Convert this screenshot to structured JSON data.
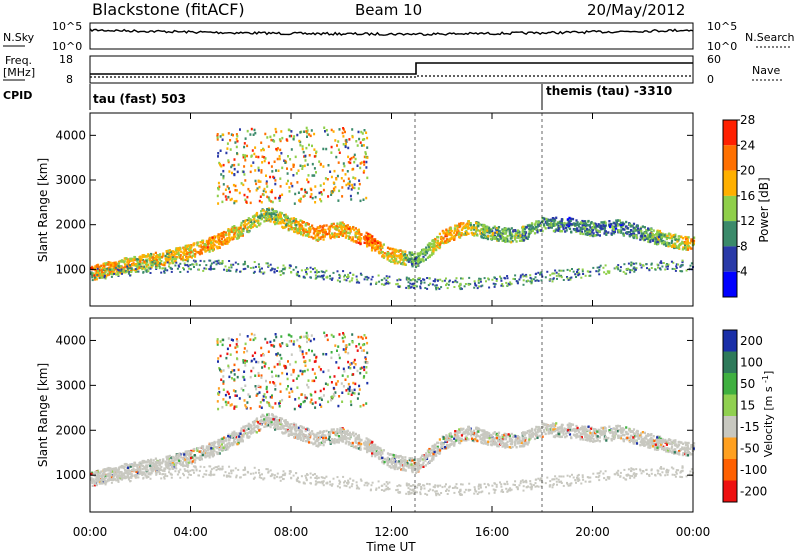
{
  "header": {
    "station": "Blackstone (fitACF)",
    "beam": "Beam 10",
    "date": "20/May/2012"
  },
  "noise_panel": {
    "left_label": "N.Sky",
    "right_label": "N.Search",
    "left_ticks": [
      "10^5",
      "10^0"
    ],
    "right_ticks": [
      "10^5",
      "10^0"
    ]
  },
  "freq_panel": {
    "left_label_1": "Freq.",
    "left_label_2": "[MHz]",
    "right_label": "Nave",
    "left_ticks": [
      "18",
      "8"
    ],
    "right_ticks": [
      "60",
      "0"
    ]
  },
  "cpid": {
    "label": "CPID",
    "segments": [
      {
        "text": "tau (fast) 503",
        "start_hour": 0
      },
      {
        "text": "themis (tau) -3310",
        "start_hour": 18
      }
    ]
  },
  "power_panel": {
    "ylabel": "Slant Range [km]",
    "yticks": [
      "1000",
      "2000",
      "3000",
      "4000"
    ],
    "colorbar_label": "Power [dB]",
    "colorbar_ticks": [
      "4",
      "8",
      "12",
      "16",
      "20",
      "24",
      "28"
    ],
    "colors": [
      "#0000ff",
      "#2a3aa8",
      "#3b8a6a",
      "#8fcf4a",
      "#ffb000",
      "#ff7000",
      "#ff2000"
    ]
  },
  "velocity_panel": {
    "ylabel": "Slant Range [km]",
    "yticks": [
      "1000",
      "2000",
      "3000",
      "4000"
    ],
    "colorbar_label": "Velocity [m s^-1]",
    "colorbar_ticks": [
      "200",
      "100",
      "50",
      "15",
      "-15",
      "-50",
      "-100",
      "-200"
    ],
    "colors": [
      "#1a2fa8",
      "#2e7a5a",
      "#3fb040",
      "#90d050",
      "#c8c8c0",
      "#ffa020",
      "#ff6000",
      "#ee1010"
    ]
  },
  "xaxis": {
    "label": "Time UT",
    "ticks": [
      "00:00",
      "04:00",
      "08:00",
      "12:00",
      "16:00",
      "20:00",
      "00:00"
    ]
  },
  "chart_data": {
    "type": "heatmap",
    "title": "Blackstone (fitACF) Beam 10 20/May/2012",
    "xlabel": "Time UT",
    "ylabel": "Slant Range [km]",
    "xlim_hours": [
      0,
      24
    ],
    "ylim_km": [
      180,
      4500
    ],
    "frequency_mhz_steps": [
      {
        "start_hour": 0,
        "end_hour": 13,
        "value": 10
      },
      {
        "start_hour": 13,
        "end_hour": 24,
        "value": 15
      }
    ],
    "scatter_bands": [
      {
        "time": [
          0,
          1,
          2,
          3,
          4,
          5,
          6,
          7,
          8,
          9,
          10,
          11,
          12,
          13,
          14,
          15,
          16,
          17,
          18,
          19,
          20,
          21,
          22,
          23,
          24
        ],
        "range_km": [
          900,
          1050,
          1150,
          1250,
          1400,
          1600,
          1900,
          2250,
          2000,
          1800,
          1900,
          1650,
          1300,
          1200,
          1700,
          1950,
          1800,
          1750,
          2000,
          2000,
          1900,
          1950,
          1800,
          1650,
          1550
        ],
        "power_db": [
          22,
          20,
          18,
          18,
          20,
          22,
          18,
          16,
          18,
          22,
          20,
          24,
          20,
          12,
          22,
          18,
          14,
          14,
          12,
          10,
          12,
          10,
          12,
          16,
          20
        ]
      }
    ]
  }
}
